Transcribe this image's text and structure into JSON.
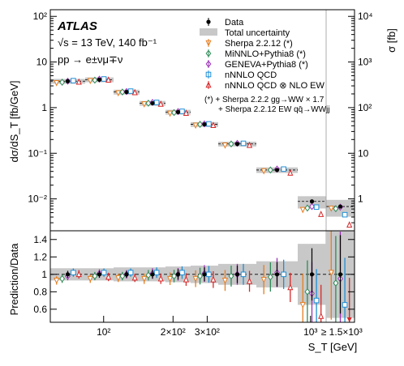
{
  "chart_data": [
    {
      "type": "scatter",
      "title": "ATLAS",
      "info_lines": [
        "√s = 13 TeV, 140 fb⁻¹",
        "pp → e±νμ∓ν"
      ],
      "xlabel": "S_T [GeV]",
      "ylabel": "dσ/dS_T [fb/GeV]",
      "ylabel_right": "σ [fb]",
      "yscale": "log",
      "ylim": [
        0.002,
        140
      ],
      "yticks": [
        "10²",
        "10",
        "1",
        "10⁻¹",
        "10⁻²"
      ],
      "yticks_right": [
        "10⁴",
        "10³",
        "10²",
        "10",
        "1"
      ],
      "legend_location": "top-right",
      "legend": [
        {
          "label": "Data",
          "marker": "filled-circle",
          "color": "#000000"
        },
        {
          "label": "Total uncertainty",
          "marker": "band",
          "color": "#c8c8c8"
        },
        {
          "label": "Sherpa 2.2.12 (*)",
          "marker": "down-triangle-open",
          "color": "#e67e22"
        },
        {
          "label": "MiNNLO+Pythia8 (*)",
          "marker": "diamond-open",
          "color": "#2e8b57"
        },
        {
          "label": "GENEVA+Pythia8 (*)",
          "marker": "diamond-open",
          "color": "#9b30b6"
        },
        {
          "label": "nNNLO QCD",
          "marker": "square-open",
          "color": "#1f8fd6"
        },
        {
          "label": "nNNLO QCD ⊗ NLO EW",
          "marker": "triangle-open",
          "color": "#d62728"
        }
      ],
      "footnote": [
        "(*) + Sherpa 2.2.2 gg→WW × 1.7",
        "+ Sherpa 2.2.12 EW qq̄→WWjj"
      ],
      "bins": [
        {
          "data": 3.8,
          "unc": 0.12
        },
        {
          "data": 4.1,
          "unc": 0.12
        },
        {
          "data": 2.2,
          "unc": 0.12
        },
        {
          "data": 1.25,
          "unc": 0.12
        },
        {
          "data": 0.8,
          "unc": 0.12
        },
        {
          "data": 0.43,
          "unc": 0.12
        },
        {
          "data": 0.16,
          "unc": 0.12
        },
        {
          "data": 0.043,
          "unc": 0.14
        },
        {
          "data": 0.0088,
          "unc": 0.3
        },
        {
          "data": 0.0068,
          "unc": 0.4
        }
      ],
      "series": [
        {
          "name": "Sherpa 2.2.12 (*)",
          "values": [
            3.5,
            3.9,
            2.1,
            1.2,
            0.75,
            0.41,
            0.15,
            0.041,
            0.0058,
            0.0062
          ]
        },
        {
          "name": "MiNNLO+Pythia8 (*)",
          "values": [
            3.6,
            4.0,
            2.2,
            1.25,
            0.78,
            0.43,
            0.16,
            0.043,
            0.0063,
            0.0061
          ]
        },
        {
          "name": "GENEVA+Pythia8 (*)",
          "values": [
            3.8,
            4.2,
            2.25,
            1.3,
            0.82,
            0.44,
            0.165,
            0.045,
            0.0068,
            0.0066
          ]
        },
        {
          "name": "nNNLO QCD",
          "values": [
            3.9,
            4.25,
            2.3,
            1.3,
            0.83,
            0.44,
            0.165,
            0.045,
            0.0066,
            0.0045
          ]
        },
        {
          "name": "nNNLO QCD ⊗ NLO EW",
          "values": [
            3.65,
            4.05,
            2.15,
            1.2,
            0.76,
            0.41,
            0.15,
            0.037,
            0.0046,
            0.0027
          ]
        }
      ]
    },
    {
      "type": "scatter",
      "ylabel": "Prediction/Data",
      "xlabel": "S_T [GeV]",
      "ylim": [
        0.45,
        1.5
      ],
      "yticks": [
        "1.4",
        "1.2",
        "1",
        "0.8",
        "0.6"
      ],
      "xticks": [
        "10²",
        "2×10²",
        "3×10²",
        "10³",
        "≥ 1.5×10³"
      ],
      "reference_line": 1,
      "ratios": [
        {
          "data_unc": 0.04,
          "band": 0.07,
          "values": [
            0.93,
            0.95,
            0.98,
            1.02,
            1.0
          ]
        },
        {
          "data_unc": 0.04,
          "band": 0.07,
          "values": [
            0.95,
            0.98,
            1.01,
            1.02,
            0.97
          ]
        },
        {
          "data_unc": 0.04,
          "band": 0.08,
          "values": [
            0.96,
            0.98,
            1.0,
            1.02,
            0.96
          ]
        },
        {
          "data_unc": 0.05,
          "band": 0.08,
          "values": [
            0.95,
            0.99,
            1.01,
            1.02,
            0.95
          ]
        },
        {
          "data_unc": 0.06,
          "band": 0.09,
          "values": [
            0.95,
            0.98,
            1.0,
            1.02,
            0.94
          ]
        },
        {
          "data_unc": 0.08,
          "band": 0.1,
          "values": [
            0.95,
            0.98,
            1.01,
            1.0,
            0.94
          ]
        },
        {
          "data_unc": 0.1,
          "band": 0.12,
          "values": [
            0.93,
            0.98,
            1.0,
            1.0,
            0.92
          ]
        },
        {
          "data_unc": 0.14,
          "band": 0.15,
          "values": [
            0.94,
            0.97,
            1.02,
            1.0,
            0.85
          ]
        },
        {
          "data_unc": 0.3,
          "band": 0.35,
          "values": [
            0.65,
            0.8,
            0.78,
            0.7,
            0.52
          ]
        },
        {
          "data_unc": 0.45,
          "band": 0.5,
          "values": [
            1.02,
            0.9,
            0.95,
            0.65,
            0.42
          ]
        }
      ]
    }
  ]
}
